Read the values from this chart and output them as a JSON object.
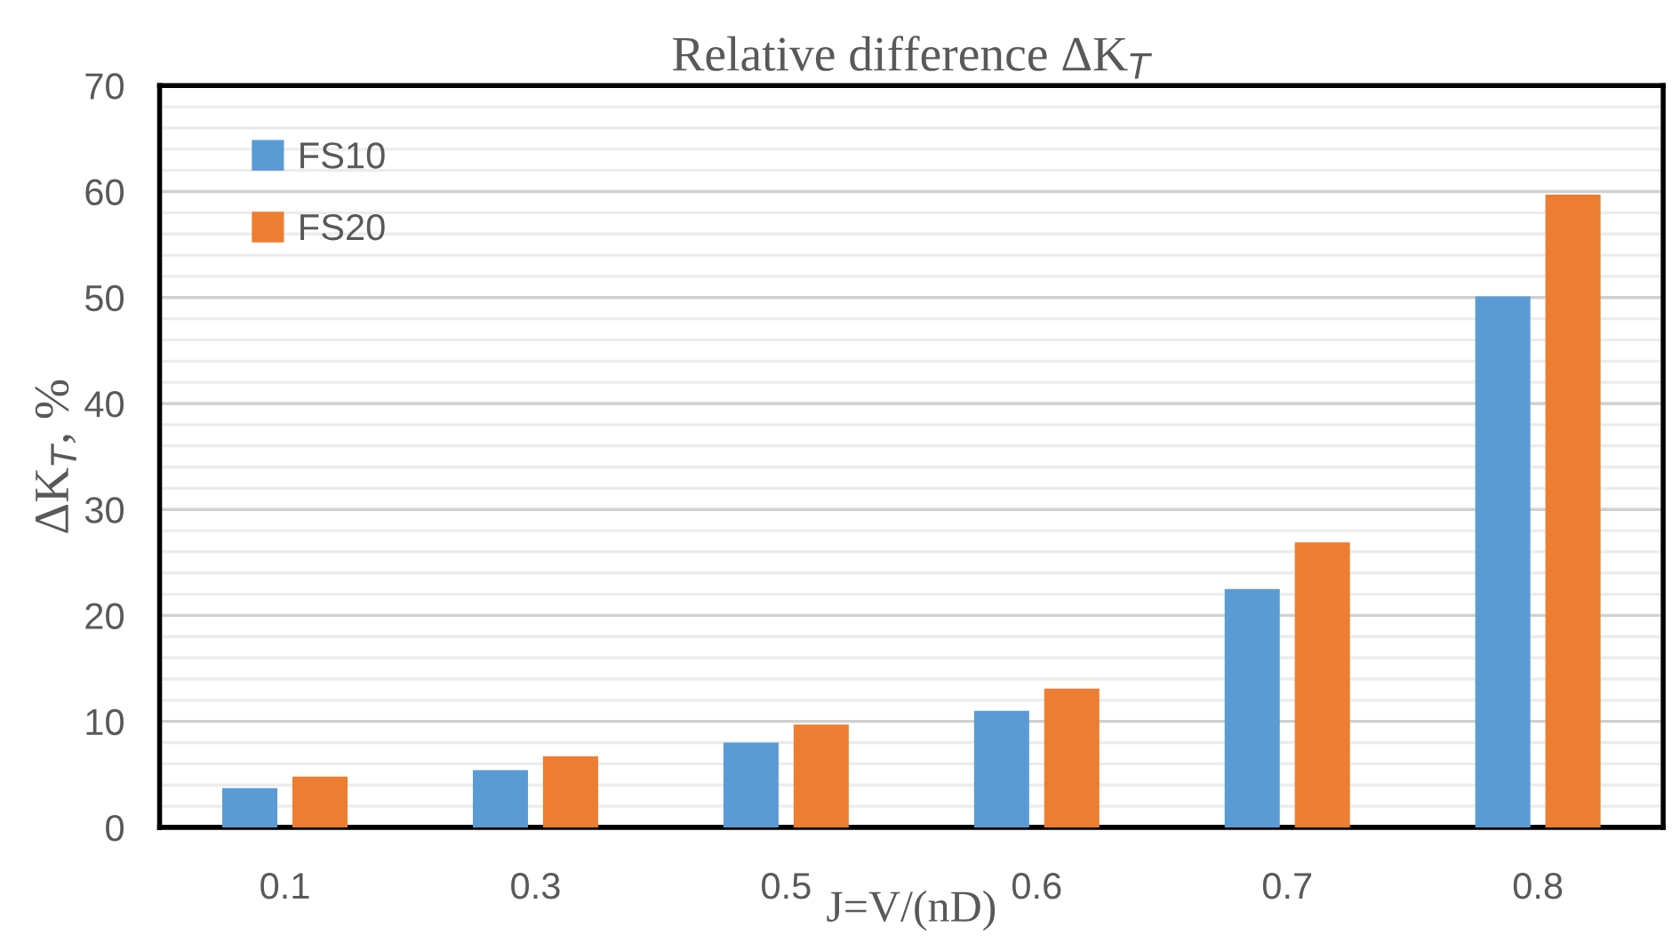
{
  "chart_data": {
    "type": "bar",
    "title": "Relative difference ΔK$_{T}$",
    "xlabel": "J=V/(nD)",
    "ylabel": "ΔK$_{T}$, %",
    "categories": [
      "0.1",
      "0.3",
      "0.5",
      "0.6",
      "0.7",
      "0.8"
    ],
    "series": [
      {
        "name": "FS10",
        "color": "#5b9bd5",
        "values": [
          3.7,
          5.4,
          8.0,
          11.0,
          22.5,
          50.1
        ]
      },
      {
        "name": "FS20",
        "color": "#ed7d31",
        "values": [
          4.8,
          6.7,
          9.7,
          13.1,
          26.9,
          59.7
        ]
      }
    ],
    "ylim": [
      0,
      70
    ],
    "yticks": [
      0,
      {
        "value": 2,
        "label": null
      },
      {
        "value": 4,
        "label": null
      },
      {
        "value": 6,
        "label": null
      },
      {
        "value": 8,
        "label": null
      },
      10,
      {
        "value": 12,
        "label": null
      },
      {
        "value": 14,
        "label": null
      },
      {
        "value": 16,
        "label": null
      },
      {
        "value": 18,
        "label": null
      },
      20,
      {
        "value": 22,
        "label": null
      },
      {
        "value": 24,
        "label": null
      },
      {
        "value": 26,
        "label": null
      },
      {
        "value": 28,
        "label": null
      },
      30,
      {
        "value": 32,
        "label": null
      },
      {
        "value": 34,
        "label": null
      },
      {
        "value": 36,
        "label": null
      },
      {
        "value": 38,
        "label": null
      },
      40,
      {
        "value": 42,
        "label": null
      },
      {
        "value": 44,
        "label": null
      },
      {
        "value": 46,
        "label": null
      },
      {
        "value": 48,
        "label": null
      },
      50,
      {
        "value": 52,
        "label": null
      },
      {
        "value": 54,
        "label": null
      },
      {
        "value": 56,
        "label": null
      },
      {
        "value": 58,
        "label": null
      },
      60,
      {
        "value": 62,
        "label": null
      },
      {
        "value": 64,
        "label": null
      },
      {
        "value": 66,
        "label": null
      },
      {
        "value": 68,
        "label": null
      },
      70
    ],
    "grid": "y",
    "legend": "top left"
  }
}
